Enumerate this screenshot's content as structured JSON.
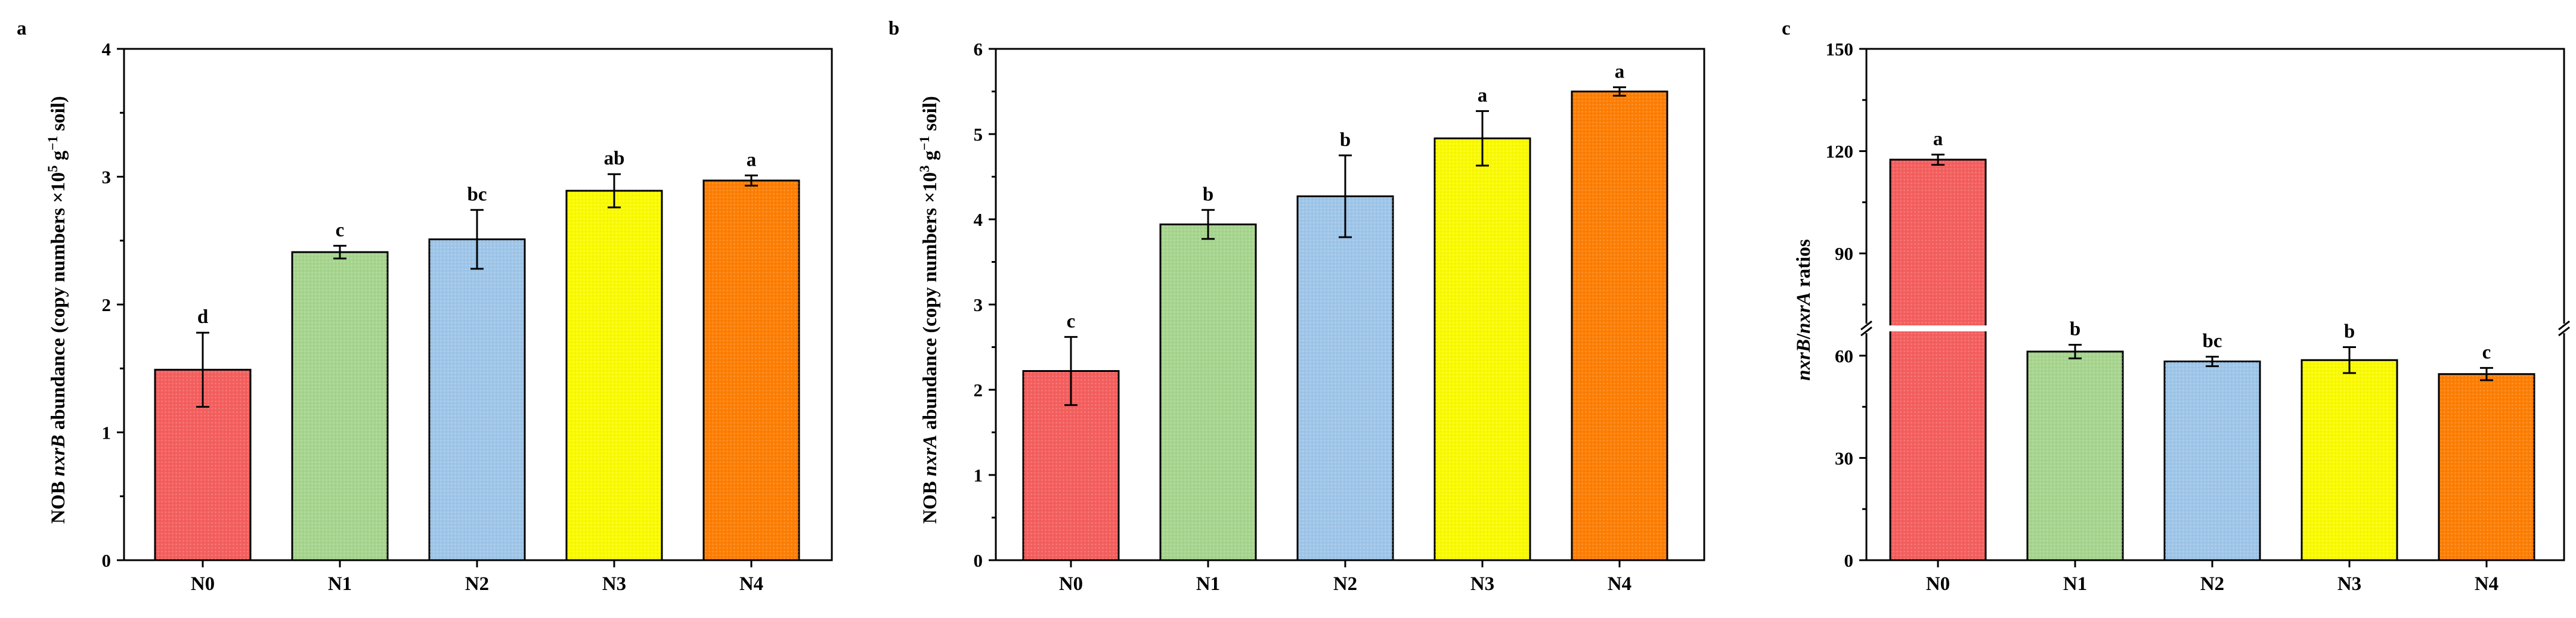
{
  "figure": {
    "colors": {
      "N0": "#f4605f",
      "N1": "#a7d58f",
      "N2": "#9fc6e9",
      "N3": "#fafa05",
      "N4": "#fd7f06"
    },
    "pattern": "dotted-texture"
  },
  "chart_data": [
    {
      "panel": "a",
      "type": "bar",
      "categories": [
        "N0",
        "N1",
        "N2",
        "N3",
        "N4"
      ],
      "values": [
        1.49,
        2.41,
        2.51,
        2.89,
        2.97
      ],
      "errors": [
        0.29,
        0.05,
        0.23,
        0.13,
        0.04
      ],
      "letters": [
        "d",
        "c",
        "bc",
        "ab",
        "a"
      ],
      "ylim": [
        0,
        4
      ],
      "yticks": [
        "0",
        "1",
        "2",
        "3",
        "4"
      ],
      "ylabel_parts": [
        "NOB ",
        "nxrB",
        " abundance (copy numbers ×10",
        "5",
        " g",
        "−1",
        " soil)"
      ],
      "xlabel": ""
    },
    {
      "panel": "b",
      "type": "bar",
      "categories": [
        "N0",
        "N1",
        "N2",
        "N3",
        "N4"
      ],
      "values": [
        2.22,
        3.94,
        4.27,
        4.95,
        5.5
      ],
      "errors": [
        0.4,
        0.17,
        0.48,
        0.32,
        0.05
      ],
      "letters": [
        "c",
        "b",
        "b",
        "a",
        "a"
      ],
      "ylim": [
        0,
        6
      ],
      "yticks": [
        "0",
        "1",
        "2",
        "3",
        "4",
        "5",
        "6"
      ],
      "ylabel_parts": [
        "NOB ",
        "nxrA",
        " abundance (copy numbers ×10",
        "3",
        " g",
        "−1",
        " soil)"
      ],
      "xlabel": ""
    },
    {
      "panel": "c",
      "type": "bar",
      "categories": [
        "N0",
        "N1",
        "N2",
        "N3",
        "N4"
      ],
      "values": [
        117.5,
        61.2,
        58.3,
        58.7,
        54.6
      ],
      "errors": [
        1.5,
        2.0,
        1.4,
        3.8,
        1.8
      ],
      "letters": [
        "a",
        "b",
        "bc",
        "b",
        "c"
      ],
      "ylim": [
        0,
        150
      ],
      "yticks": [
        "0",
        "30",
        "60",
        "90",
        "120",
        "150"
      ],
      "axis_break": 68,
      "ylabel_parts": [
        "nxrB",
        "/",
        "nxrA",
        " ratios"
      ],
      "xlabel": ""
    }
  ]
}
